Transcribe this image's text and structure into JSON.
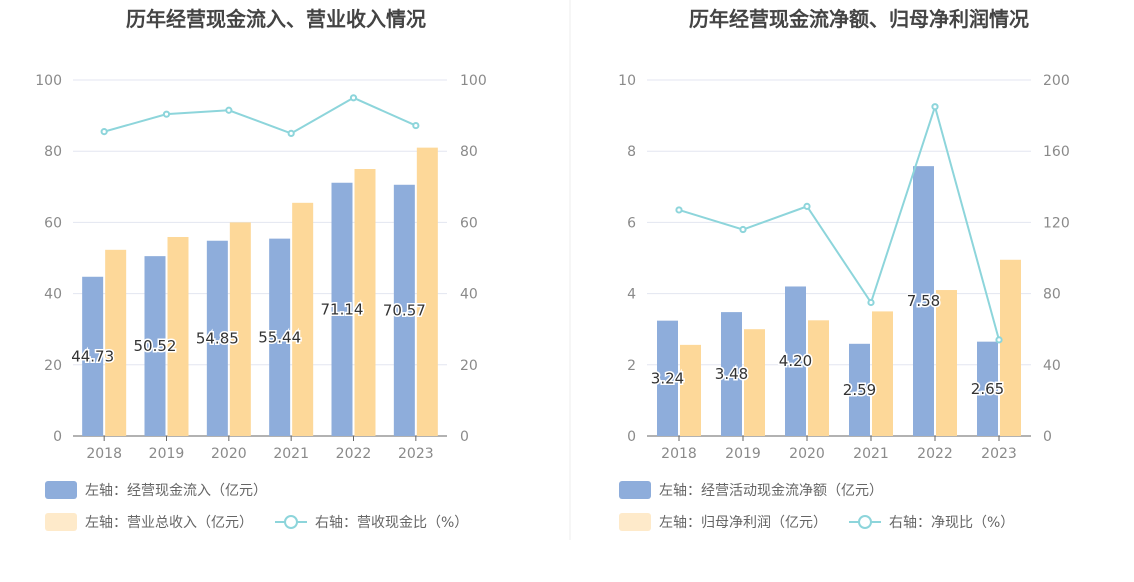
{
  "colors": {
    "bar_primary": "#8eaddb",
    "bar_secondary": "#fdd899",
    "legend_secondary_swatch": "#feeaca",
    "line": "#8dd5db",
    "grid": "#e3e6f0",
    "axis": "#666666",
    "divider": "#ececec"
  },
  "chart_data": [
    {
      "type": "bar",
      "title": "历年经营现金流入、营业收入情况",
      "categories": [
        "2018",
        "2019",
        "2020",
        "2021",
        "2022",
        "2023"
      ],
      "left_axis": {
        "ylim": [
          0,
          100
        ],
        "ticks": [
          "0",
          "20",
          "40",
          "60",
          "80",
          "100"
        ]
      },
      "right_axis": {
        "ylim": [
          0,
          100
        ],
        "ticks": [
          "0",
          "20",
          "40",
          "60",
          "80",
          "100"
        ]
      },
      "series": [
        {
          "name": "左轴：经营现金流入（亿元）",
          "type": "bar",
          "axis": "left",
          "values": [
            44.73,
            50.52,
            54.85,
            55.44,
            71.14,
            70.57
          ],
          "labels": [
            "44.73",
            "50.52",
            "54.85",
            "55.44",
            "71.14",
            "70.57"
          ]
        },
        {
          "name": "左轴：营业总收入（亿元）",
          "type": "bar",
          "axis": "left",
          "values": [
            52.3,
            55.9,
            60.0,
            65.5,
            75.0,
            81.0
          ]
        },
        {
          "name": "右轴：营收现金比（%）",
          "type": "line",
          "axis": "right",
          "values": [
            85.5,
            90.4,
            91.5,
            85.0,
            95.0,
            87.2
          ]
        }
      ]
    },
    {
      "type": "bar",
      "title": "历年经营现金流净额、归母净利润情况",
      "categories": [
        "2018",
        "2019",
        "2020",
        "2021",
        "2022",
        "2023"
      ],
      "left_axis": {
        "ylim": [
          0,
          10
        ],
        "ticks": [
          "0",
          "2",
          "4",
          "6",
          "8",
          "10"
        ]
      },
      "right_axis": {
        "ylim": [
          0,
          200
        ],
        "ticks": [
          "0",
          "40",
          "80",
          "120",
          "160",
          "200"
        ]
      },
      "series": [
        {
          "name": "左轴：经营活动现金流净额（亿元）",
          "type": "bar",
          "axis": "left",
          "values": [
            3.24,
            3.48,
            4.2,
            2.59,
            7.58,
            2.65
          ],
          "labels": [
            "3.24",
            "3.48",
            "4.20",
            "2.59",
            "7.58",
            "2.65"
          ]
        },
        {
          "name": "左轴：归母净利润（亿元）",
          "type": "bar",
          "axis": "left",
          "values": [
            2.56,
            3.0,
            3.25,
            3.5,
            4.1,
            4.95
          ]
        },
        {
          "name": "右轴：净现比（%）",
          "type": "line",
          "axis": "right",
          "values": [
            127,
            116,
            129,
            75,
            185,
            54
          ]
        }
      ]
    }
  ]
}
